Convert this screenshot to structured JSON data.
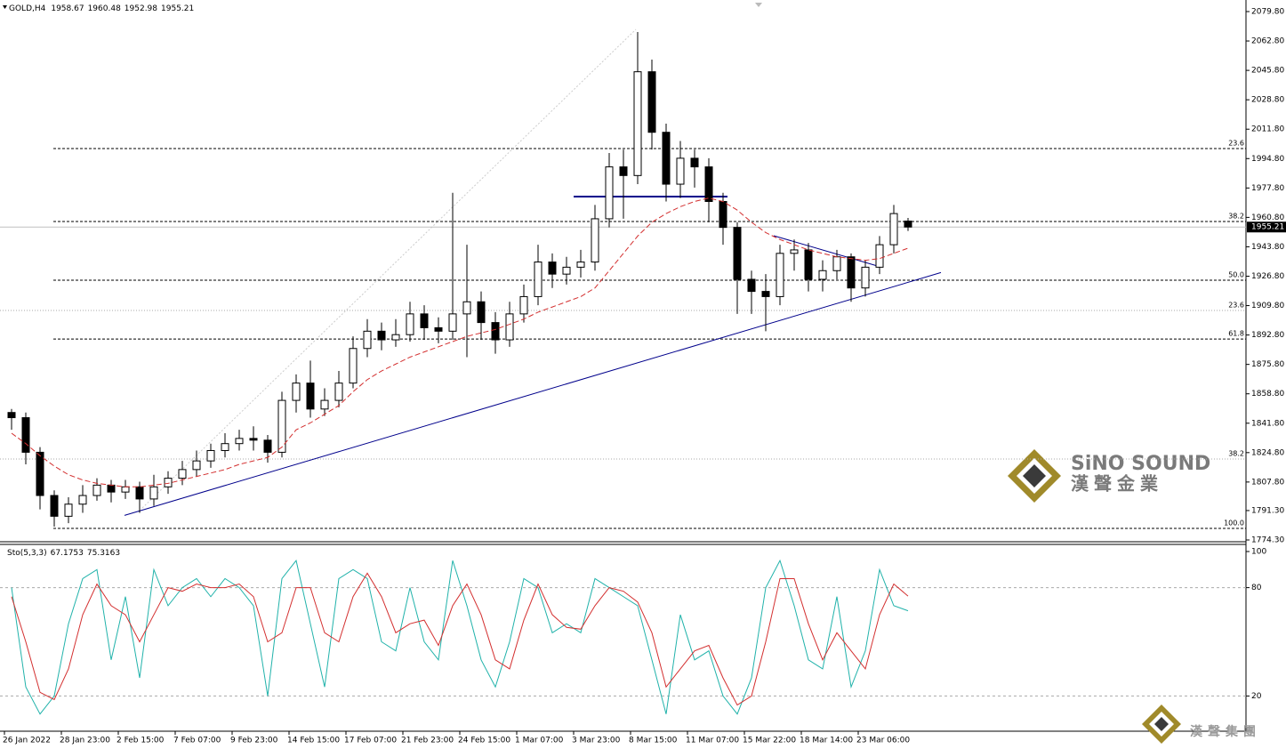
{
  "chart_data": {
    "type": "candlestick",
    "header": {
      "symbol": "GOLD,H4"
    },
    "categories": [
      "26 Jan 2022",
      null,
      null,
      null,
      "28 Jan 23:00",
      null,
      null,
      null,
      "2 Feb 15:00",
      null,
      null,
      null,
      "7 Feb 07:00",
      null,
      null,
      null,
      "9 Feb 23:00",
      null,
      null,
      null,
      "14 Feb 15:00",
      null,
      null,
      null,
      "17 Feb 07:00",
      null,
      null,
      null,
      "21 Feb 23:00",
      null,
      null,
      null,
      "24 Feb 15:00",
      null,
      null,
      null,
      "1 Mar 07:00",
      null,
      null,
      null,
      "3 Mar 23:00",
      null,
      null,
      null,
      "8 Mar 15:00",
      null,
      null,
      null,
      "11 Mar 07:00",
      null,
      null,
      null,
      "15 Mar 22:00",
      null,
      null,
      null,
      "18 Mar 14:00",
      null,
      null,
      null,
      "23 Mar 06:00",
      null,
      null,
      null
    ],
    "open": [
      1848,
      1845,
      1825,
      1800,
      1788,
      1795,
      1800,
      1806,
      1802,
      1805,
      1798,
      1805,
      1810,
      1815,
      1820,
      1826,
      1830,
      1833,
      1832,
      1825,
      1855,
      1865,
      1850,
      1855,
      1865,
      1885,
      1895,
      1890,
      1893,
      1905,
      1897,
      1895,
      1905,
      1912,
      1900,
      1890,
      1905,
      1915,
      1935,
      1928,
      1932,
      1935,
      1960,
      1990,
      1985,
      2045,
      2010,
      1980,
      1995,
      1990,
      1970,
      1955,
      1925,
      1918,
      1915,
      1940,
      1942,
      1925,
      1930,
      1938,
      1920,
      1932,
      1945,
      1958.67
    ],
    "high": [
      1850,
      1848,
      1828,
      1803,
      1799,
      1806,
      1810,
      1809,
      1809,
      1808,
      1812,
      1814,
      1820,
      1826,
      1830,
      1836,
      1838,
      1840,
      1835,
      1860,
      1870,
      1878,
      1862,
      1872,
      1892,
      1902,
      1900,
      1902,
      1912,
      1910,
      1903,
      1975,
      1945,
      1918,
      1906,
      1912,
      1922,
      1945,
      1940,
      1938,
      1942,
      1968,
      1998,
      2000,
      2068,
      2052,
      2015,
      2005,
      2000,
      1995,
      1975,
      1958,
      1930,
      1928,
      1945,
      1948,
      1946,
      1936,
      1942,
      1940,
      1936,
      1950,
      1968,
      1960.48
    ],
    "low": [
      1838,
      1818,
      1792,
      1782,
      1784,
      1790,
      1797,
      1796,
      1798,
      1790,
      1794,
      1801,
      1806,
      1811,
      1816,
      1822,
      1826,
      1826,
      1819,
      1822,
      1848,
      1845,
      1846,
      1851,
      1862,
      1880,
      1884,
      1886,
      1889,
      1890,
      1888,
      1890,
      1880,
      1890,
      1882,
      1886,
      1900,
      1910,
      1920,
      1922,
      1926,
      1930,
      1955,
      1960,
      1980,
      2000,
      1970,
      1972,
      1978,
      1958,
      1945,
      1905,
      1905,
      1895,
      1910,
      1930,
      1918,
      1918,
      1925,
      1912,
      1915,
      1928,
      1940,
      1952.98
    ],
    "close": [
      1845,
      1825,
      1800,
      1788,
      1795,
      1800,
      1806,
      1802,
      1805,
      1798,
      1805,
      1810,
      1815,
      1820,
      1826,
      1830,
      1833,
      1832,
      1825,
      1855,
      1865,
      1850,
      1855,
      1865,
      1885,
      1895,
      1890,
      1893,
      1905,
      1897,
      1895,
      1905,
      1912,
      1900,
      1890,
      1905,
      1915,
      1935,
      1928,
      1932,
      1935,
      1960,
      1990,
      1985,
      2045,
      2010,
      1980,
      1995,
      1990,
      1970,
      1955,
      1925,
      1918,
      1915,
      1940,
      1942,
      1925,
      1930,
      1938,
      1920,
      1932,
      1945,
      1963,
      1955.21
    ],
    "ylim": [
      1774.3,
      2079.8
    ],
    "yticks": [
      {
        "value": 2079.8,
        "label": "2079.80"
      },
      {
        "value": 2062.8,
        "label": "2062.80"
      },
      {
        "value": 2045.8,
        "label": "2045.80"
      },
      {
        "value": 2028.8,
        "label": "2028.80"
      },
      {
        "value": 2011.8,
        "label": "2011.80"
      },
      {
        "value": 1994.8,
        "label": "1994.80"
      },
      {
        "value": 1977.8,
        "label": "1977.80"
      },
      {
        "value": 1960.8,
        "label": "1960.80"
      },
      {
        "value": 1943.8,
        "label": "1943.80"
      },
      {
        "value": 1926.8,
        "label": "1926.80"
      },
      {
        "value": 1909.8,
        "label": "1909.80"
      },
      {
        "value": 1892.8,
        "label": "1892.80"
      },
      {
        "value": 1875.8,
        "label": "1875.80"
      },
      {
        "value": 1858.8,
        "label": "1858.80"
      },
      {
        "value": 1841.8,
        "label": "1841.80"
      },
      {
        "value": 1824.8,
        "label": "1824.80"
      },
      {
        "value": 1807.8,
        "label": "1807.80"
      },
      {
        "value": 1791.3,
        "label": "1791.30"
      },
      {
        "value": 1774.3,
        "label": "1774.30"
      }
    ],
    "ma": {
      "color": "#d32f2f",
      "values": [
        1836,
        1830,
        1823,
        1817,
        1812,
        1809,
        1807,
        1806,
        1805,
        1805,
        1806,
        1807,
        1809,
        1811,
        1813,
        1815,
        1818,
        1820,
        1822,
        1828,
        1838,
        1842,
        1847,
        1852,
        1860,
        1867,
        1872,
        1876,
        1880,
        1883,
        1886,
        1889,
        1892,
        1894,
        1896,
        1899,
        1902,
        1906,
        1909,
        1912,
        1915,
        1920,
        1930,
        1940,
        1950,
        1958,
        1963,
        1967,
        1970,
        1972,
        1970,
        1965,
        1958,
        1952,
        1948,
        1945,
        1942,
        1940,
        1938,
        1937,
        1936,
        1937,
        1940,
        1943
      ]
    },
    "fib_levels": [
      {
        "label": "23.6",
        "price": 2000.6,
        "color": "#000080"
      },
      {
        "label": "38.2",
        "price": 1958.4,
        "color": "#000080"
      },
      {
        "label": "50.0",
        "price": 1924.5,
        "color": "#000080"
      },
      {
        "label": "61.8",
        "price": 1890.5,
        "color": "#000080"
      },
      {
        "label": "100.0",
        "price": 1781.0,
        "color": "#000080"
      },
      {
        "label": "23.6",
        "price": 1907.0,
        "color": "#999999"
      },
      {
        "label": "38.2",
        "price": 1821.1,
        "color": "#999999"
      }
    ],
    "trend_lines": [
      {
        "start": 1788.5,
        "end": 1928.9,
        "color": "#00008b"
      },
      {
        "start": 1972.8,
        "end": 1972.8,
        "color": "#00008b"
      },
      {
        "start": 1950.2,
        "end": 1932.2,
        "color": "#00008b"
      },
      {
        "start": 1792.8,
        "end": 2069.5,
        "color": "#cccccc"
      }
    ],
    "stochastic": {
      "name": "Sto(5,3,3)",
      "ylim": [
        0,
        100
      ],
      "yticks": [
        100,
        80,
        20
      ],
      "series": [
        {
          "color": "#20b2aa",
          "values": [
            80,
            25,
            10,
            20,
            60,
            85,
            90,
            40,
            75,
            30,
            90,
            70,
            80,
            85,
            75,
            85,
            80,
            70,
            20,
            85,
            95,
            60,
            25,
            85,
            90,
            85,
            50,
            45,
            80,
            50,
            40,
            95,
            70,
            40,
            25,
            50,
            85,
            80,
            55,
            60,
            55,
            85,
            80,
            75,
            70,
            40,
            10,
            65,
            40,
            45,
            20,
            10,
            30,
            80,
            95,
            70,
            40,
            35,
            75,
            25,
            45,
            90,
            70,
            67.1753
          ]
        },
        {
          "color": "#d32f2f",
          "values": [
            75,
            50,
            22,
            18,
            35,
            65,
            82,
            70,
            65,
            50,
            65,
            80,
            78,
            82,
            80,
            80,
            82,
            75,
            50,
            55,
            80,
            80,
            55,
            50,
            75,
            88,
            75,
            55,
            60,
            62,
            48,
            70,
            82,
            65,
            40,
            35,
            62,
            82,
            65,
            58,
            57,
            70,
            80,
            78,
            72,
            55,
            25,
            35,
            45,
            48,
            30,
            15,
            20,
            50,
            85,
            85,
            60,
            40,
            55,
            45,
            35,
            65,
            82,
            75.3163
          ]
        }
      ]
    },
    "watermark": {
      "brand": "SiNO SOUND",
      "chinese": "漢聲金業",
      "group": "漢聲集團"
    }
  }
}
